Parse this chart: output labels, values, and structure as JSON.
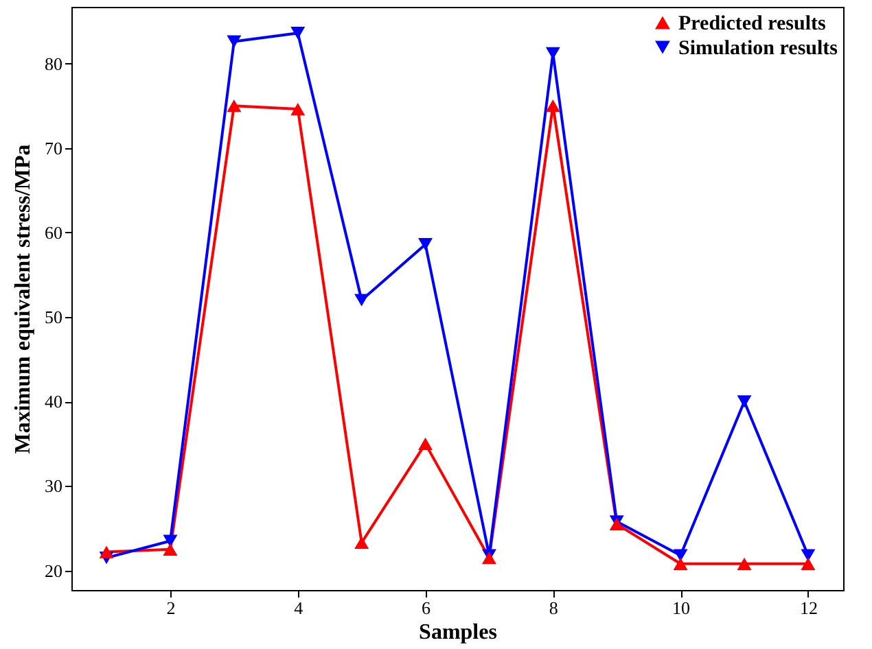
{
  "chart_data": {
    "type": "line",
    "xlabel": "Samples",
    "ylabel": "Maximum equivalent stress/MPa",
    "x": [
      1,
      2,
      3,
      4,
      5,
      6,
      7,
      8,
      9,
      10,
      11,
      12
    ],
    "series": [
      {
        "name": "Predicted results",
        "color": "#ff0000",
        "marker": "triangle",
        "values": [
          22.2,
          22.5,
          75,
          74.6,
          23.3,
          35,
          21.5,
          75,
          25.5,
          20.8,
          20.8,
          20.8
        ]
      },
      {
        "name": "Simulation results",
        "color": "#0000ff",
        "marker": "triangle-down",
        "values": [
          21.5,
          23.5,
          82.6,
          83.6,
          52,
          58.6,
          21.8,
          81.2,
          25.8,
          21.8,
          40,
          21.8
        ]
      }
    ],
    "xlim": [
      0.45,
      12.55
    ],
    "ylim": [
      17.7,
      86.7
    ],
    "xticks": [
      2,
      4,
      6,
      8,
      10,
      12
    ],
    "yticks": [
      20,
      30,
      40,
      50,
      60,
      70,
      80
    ],
    "grid": false,
    "legend": "top right",
    "line_style": "solid"
  }
}
